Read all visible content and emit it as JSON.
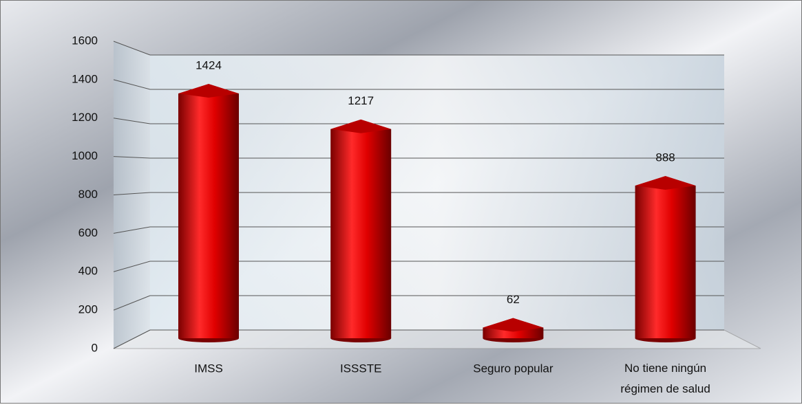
{
  "chart_data": {
    "type": "bar",
    "categories": [
      "IMSS",
      "ISSSTE",
      "Seguro popular",
      "No tiene ningún régimen de salud"
    ],
    "values": [
      1424,
      1217,
      62,
      888
    ],
    "color": "#e00000",
    "ylim": [
      0,
      1600
    ],
    "yticks": [
      0,
      200,
      400,
      600,
      800,
      1000,
      1200,
      1400,
      1600
    ],
    "grid": true
  }
}
